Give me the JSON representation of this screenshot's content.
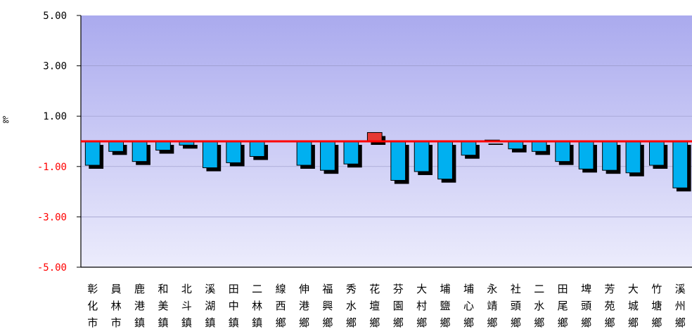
{
  "chart_data": {
    "type": "bar",
    "unit": "‰",
    "ylim": [
      -5.0,
      5.0
    ],
    "yticks": [
      "5.00",
      "3.00",
      "1.00",
      "-1.00",
      "-3.00",
      "-5.00"
    ],
    "categories": [
      "彰化市",
      "員林市",
      "鹿港鎮",
      "和美鎮",
      "北斗鎮",
      "溪湖鎮",
      "田中鎮",
      "二林鎮",
      "線西鄉",
      "伸港鄉",
      "福興鄉",
      "秀水鄉",
      "花壇鄉",
      "芬園鄉",
      "大村鄉",
      "埔鹽鄉",
      "埔心鄉",
      "永靖鄉",
      "社頭鄉",
      "二水鄉",
      "田尾鄉",
      "埤頭鄉",
      "芳苑鄉",
      "大城鄉",
      "竹塘鄉",
      "溪州鄉"
    ],
    "values": [
      -0.95,
      -0.4,
      -0.8,
      -0.35,
      -0.15,
      -1.05,
      -0.85,
      -0.6,
      0.0,
      -0.95,
      -1.15,
      -0.9,
      0.35,
      -1.55,
      -1.2,
      -1.5,
      -0.55,
      0.05,
      -0.3,
      -0.4,
      -0.8,
      -1.1,
      -1.15,
      -1.25,
      -0.95,
      -1.85
    ],
    "reference_line": 0.0,
    "grid": true,
    "colors": {
      "bar": "#00b0f0",
      "bar_highlight": "#e53935",
      "shadow": "#000000",
      "reference_line": "#ff0000",
      "plot_bg_top": "#aaaaee",
      "plot_bg_bottom": "#ececfc",
      "positive_tick": "#000000",
      "negative_tick": "#ff0000"
    }
  }
}
